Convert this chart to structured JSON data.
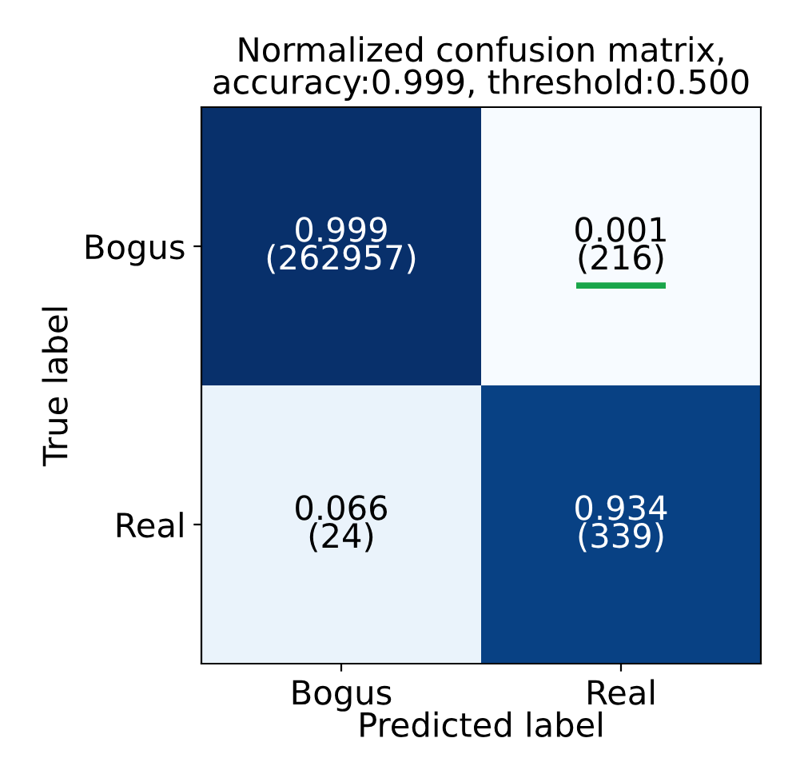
{
  "chart_data": {
    "type": "heatmap",
    "title": "Normalized confusion matrix,\naccuracy:0.999, threshold:0.500",
    "xlabel": "Predicted label",
    "ylabel": "True label",
    "categories": [
      "Bogus",
      "Real"
    ],
    "y_categories": [
      "Bogus",
      "Real"
    ],
    "cells": [
      [
        0.999,
        0.001
      ],
      [
        0.066,
        0.934
      ]
    ],
    "data_labels": true,
    "annotations": [
      "(262957)",
      "(216)",
      "(24)",
      "(339)"
    ]
  }
}
